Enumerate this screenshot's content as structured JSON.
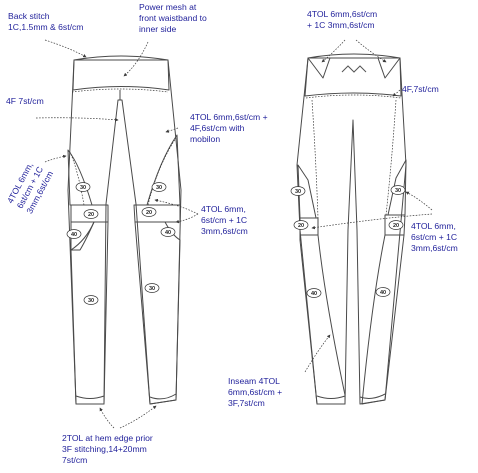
{
  "colors": {
    "yellow_panel": "#f5dd10",
    "mesh_panel": "#cfe4f0",
    "sage_panel": "#d9e6c7",
    "annotation_text": "#1f1f9a",
    "outline": "#4a4a4a"
  },
  "front": {
    "back_stitch": [
      "Back stitch",
      "1C,1.5mm & 6st/cm"
    ],
    "power_mesh": [
      "Power mesh  at",
      "front waistband to",
      "inner side"
    ],
    "seam_4f": [
      "4F 7st/cm"
    ],
    "seam_4tol_mobilon": [
      "4TOL  6mm,6st/cm +",
      "4F,6st/cm with",
      "mobilon"
    ],
    "side_4tol_rotated": [
      "4TOL 6mm,",
      "6st/cm + 1C",
      "3mm,6st/cm"
    ],
    "knee_4tol": [
      "4TOL 6mm,",
      "6st/cm + 1C",
      "3mm,6st/cm"
    ],
    "hem": [
      "2TOL at hem edge prior",
      "3F stitching,14+20mm",
      "7st/cm"
    ],
    "badges": {
      "b30": "30",
      "b20": "20",
      "b40": "40"
    }
  },
  "back": {
    "waist_4tol": [
      "4TOL 6mm,6st/cm",
      "+ 1C 3mm,6st/cm"
    ],
    "seam_4f": [
      "4F,7st/cm"
    ],
    "knee_4tol": [
      "4TOL 6mm,",
      "6st/cm + 1C",
      "3mm,6st/cm"
    ],
    "inseam": [
      "Inseam 4TOL",
      "6mm,6st/cm +",
      "3F,7st/cm"
    ],
    "badges": {
      "b30": "30",
      "b20": "20",
      "b40": "40"
    }
  }
}
